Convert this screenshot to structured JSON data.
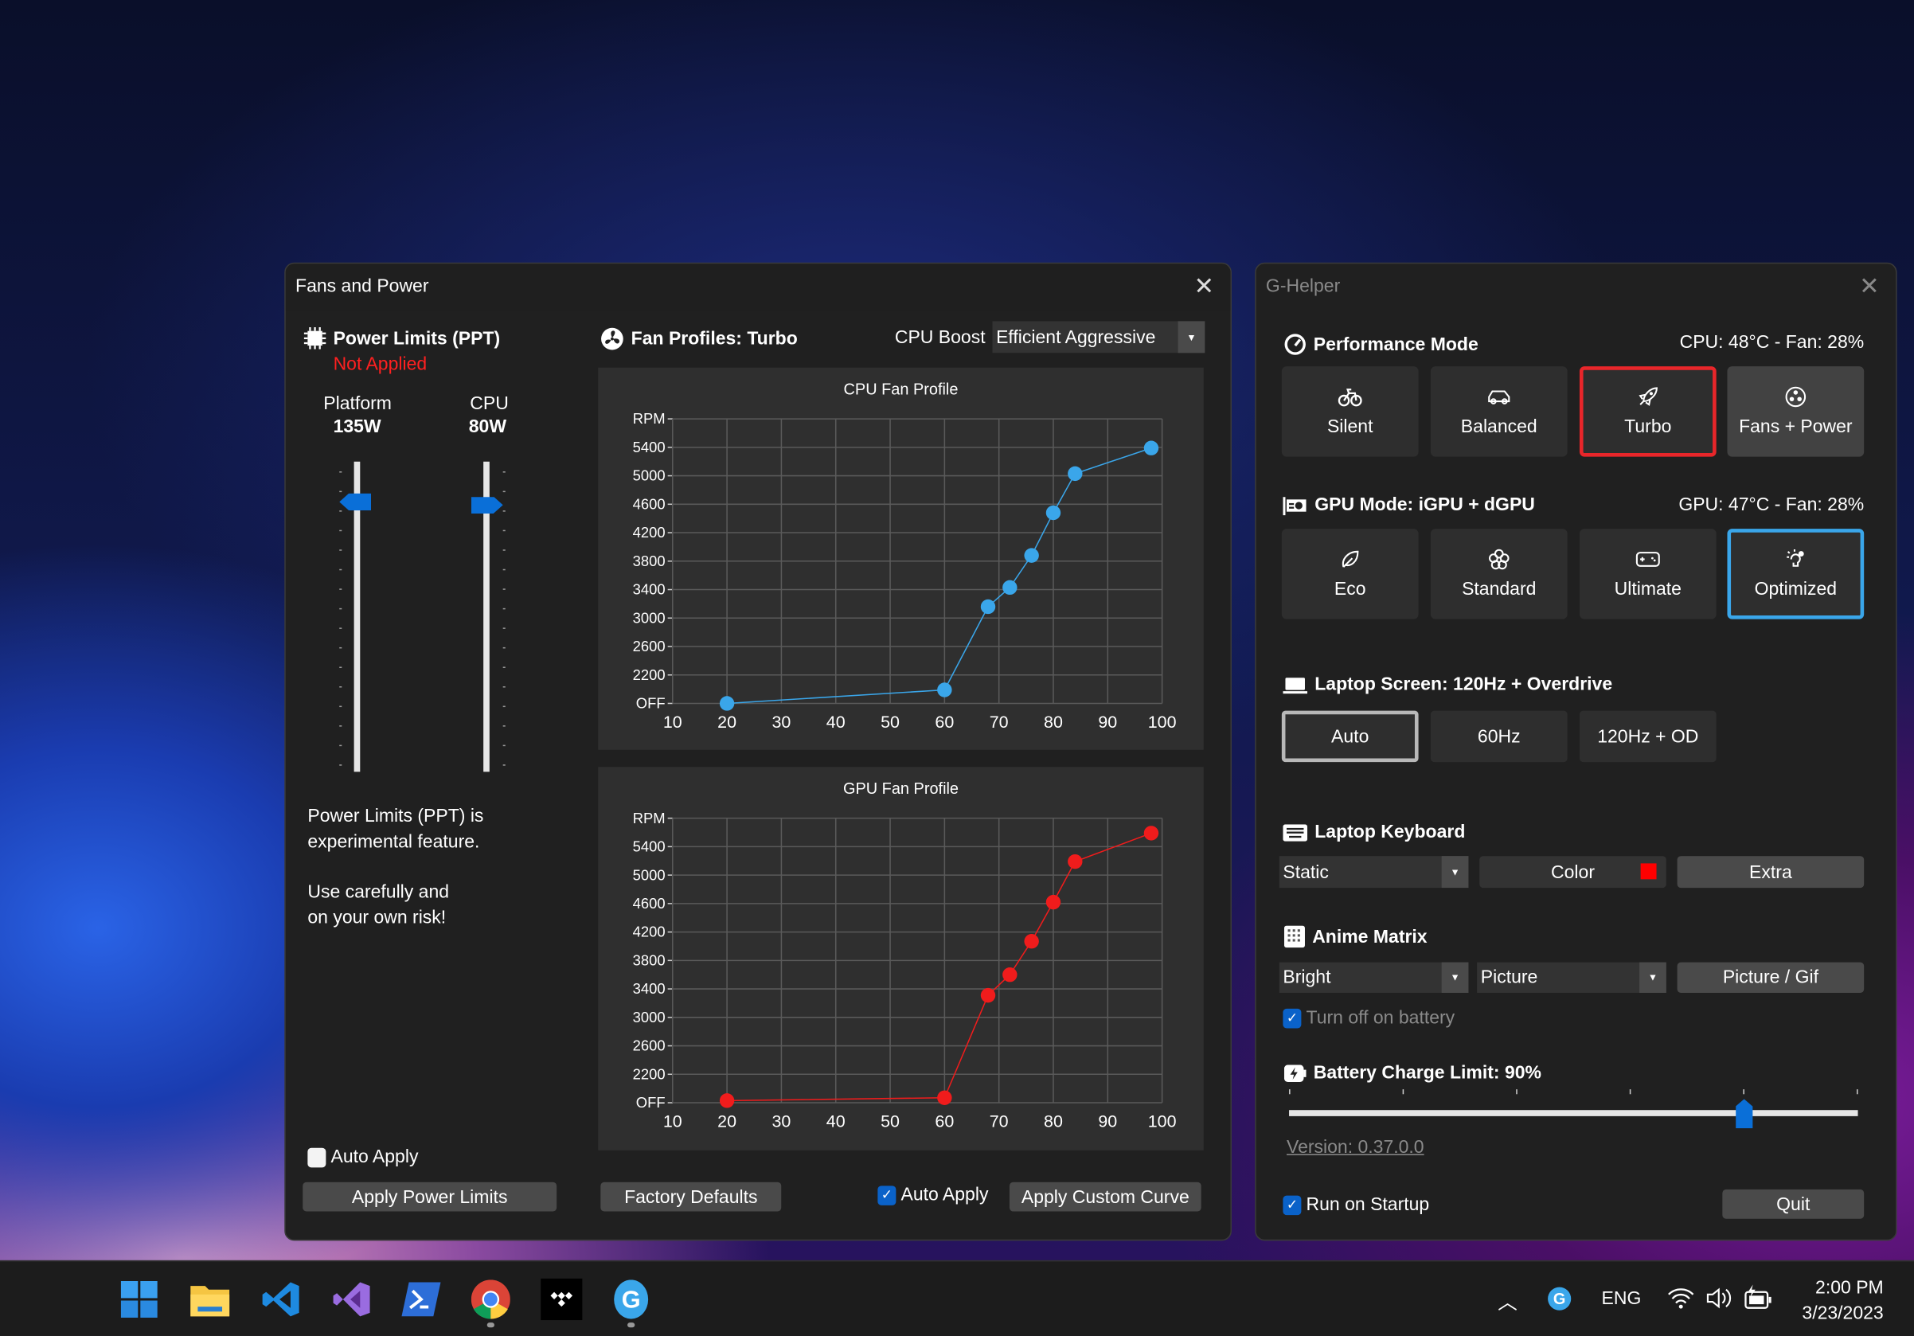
{
  "fans_window": {
    "title": "Fans and Power",
    "power": {
      "heading": "Power Limits (PPT)",
      "status": "Not Applied",
      "platform": {
        "label": "Platform",
        "value": "135W",
        "level": 0.87
      },
      "cpu": {
        "label": "CPU",
        "value": "80W",
        "level": 0.86
      },
      "note1": "Power Limits (PPT) is",
      "note2": "experimental feature.",
      "note3": "Use carefully and",
      "note4": "on your own risk!",
      "auto_apply": "Auto Apply",
      "auto_apply_checked": false,
      "apply_button": "Apply Power Limits"
    },
    "fans": {
      "heading": "Fan Profiles: Turbo",
      "boost_label": "CPU Boost",
      "boost_value": "Efficient Aggressive",
      "factory_defaults": "Factory Defaults",
      "auto_apply": "Auto Apply",
      "auto_apply_checked": true,
      "apply_curve": "Apply Custom Curve"
    }
  },
  "chart_data": [
    {
      "type": "line",
      "title": "CPU Fan Profile",
      "color": "#3aa6ea",
      "x_ticks": [
        "10",
        "20",
        "30",
        "40",
        "50",
        "60",
        "70",
        "80",
        "90",
        "100"
      ],
      "xlim": [
        10,
        100
      ],
      "y_ticks": [
        "OFF",
        "2200",
        "2600",
        "3000",
        "3400",
        "3800",
        "4200",
        "4600",
        "5000",
        "5400",
        "RPM"
      ],
      "x": [
        20,
        60,
        68,
        72,
        76,
        80,
        84,
        98
      ],
      "values": [
        1800,
        1990,
        3160,
        3430,
        3880,
        4480,
        5030,
        5390
      ],
      "grid": true
    },
    {
      "type": "line",
      "title": "GPU Fan Profile",
      "color": "#f01c1c",
      "x_ticks": [
        "10",
        "20",
        "30",
        "40",
        "50",
        "60",
        "70",
        "80",
        "90",
        "100"
      ],
      "xlim": [
        10,
        100
      ],
      "y_ticks": [
        "OFF",
        "2200",
        "2600",
        "3000",
        "3400",
        "3800",
        "4200",
        "4600",
        "5000",
        "5400",
        "RPM"
      ],
      "x": [
        20,
        60,
        68,
        72,
        76,
        80,
        84,
        98
      ],
      "values": [
        1830,
        1870,
        3310,
        3600,
        4070,
        4620,
        5190,
        5590
      ],
      "grid": true
    }
  ],
  "ghelper": {
    "title": "G-Helper",
    "perf": {
      "heading": "Performance Mode",
      "status": "CPU: 48°C -  Fan: 28%",
      "modes": [
        {
          "label": "Silent",
          "icon": "bicycle-icon"
        },
        {
          "label": "Balanced",
          "icon": "car-icon"
        },
        {
          "label": "Turbo",
          "icon": "rocket-icon"
        },
        {
          "label": "Fans + Power",
          "icon": "fan-icon"
        }
      ],
      "selected": "Turbo",
      "accent": "#e8262a"
    },
    "gpu": {
      "heading": "GPU Mode: iGPU + dGPU",
      "status": "GPU: 47°C -  Fan: 28%",
      "modes": [
        {
          "label": "Eco",
          "icon": "leaf-icon"
        },
        {
          "label": "Standard",
          "icon": "flower-icon"
        },
        {
          "label": "Ultimate",
          "icon": "gamepad-icon"
        },
        {
          "label": "Optimized",
          "icon": "lightbulb-gear-icon"
        }
      ],
      "selected": "Optimized",
      "accent": "#3aa6ea"
    },
    "screen": {
      "heading": "Laptop Screen: 120Hz + Overdrive",
      "options": [
        "Auto",
        "60Hz",
        "120Hz + OD"
      ],
      "selected": "Auto"
    },
    "keyboard": {
      "heading": "Laptop Keyboard",
      "mode": "Static",
      "color_label": "Color",
      "color": "#ff0000",
      "extra": "Extra"
    },
    "matrix": {
      "heading": "Anime Matrix",
      "brightness": "Bright",
      "mode": "Picture",
      "picture_button": "Picture / Gif",
      "battery_off": "Turn off on battery",
      "battery_off_checked": true
    },
    "battery": {
      "heading": "Battery Charge Limit: 90%",
      "level": 0.8
    },
    "version": "Version: 0.37.0.0",
    "startup": "Run on Startup",
    "startup_checked": true,
    "quit": "Quit"
  },
  "taskbar": {
    "apps": [
      "windows-start-icon",
      "file-explorer-icon",
      "vscode-icon",
      "visual-studio-icon",
      "powershell-icon",
      "chrome-icon",
      "tidal-icon",
      "g-helper-icon"
    ],
    "tray": {
      "language": "ENG",
      "time": "2:00 PM",
      "date": "3/23/2023"
    }
  }
}
